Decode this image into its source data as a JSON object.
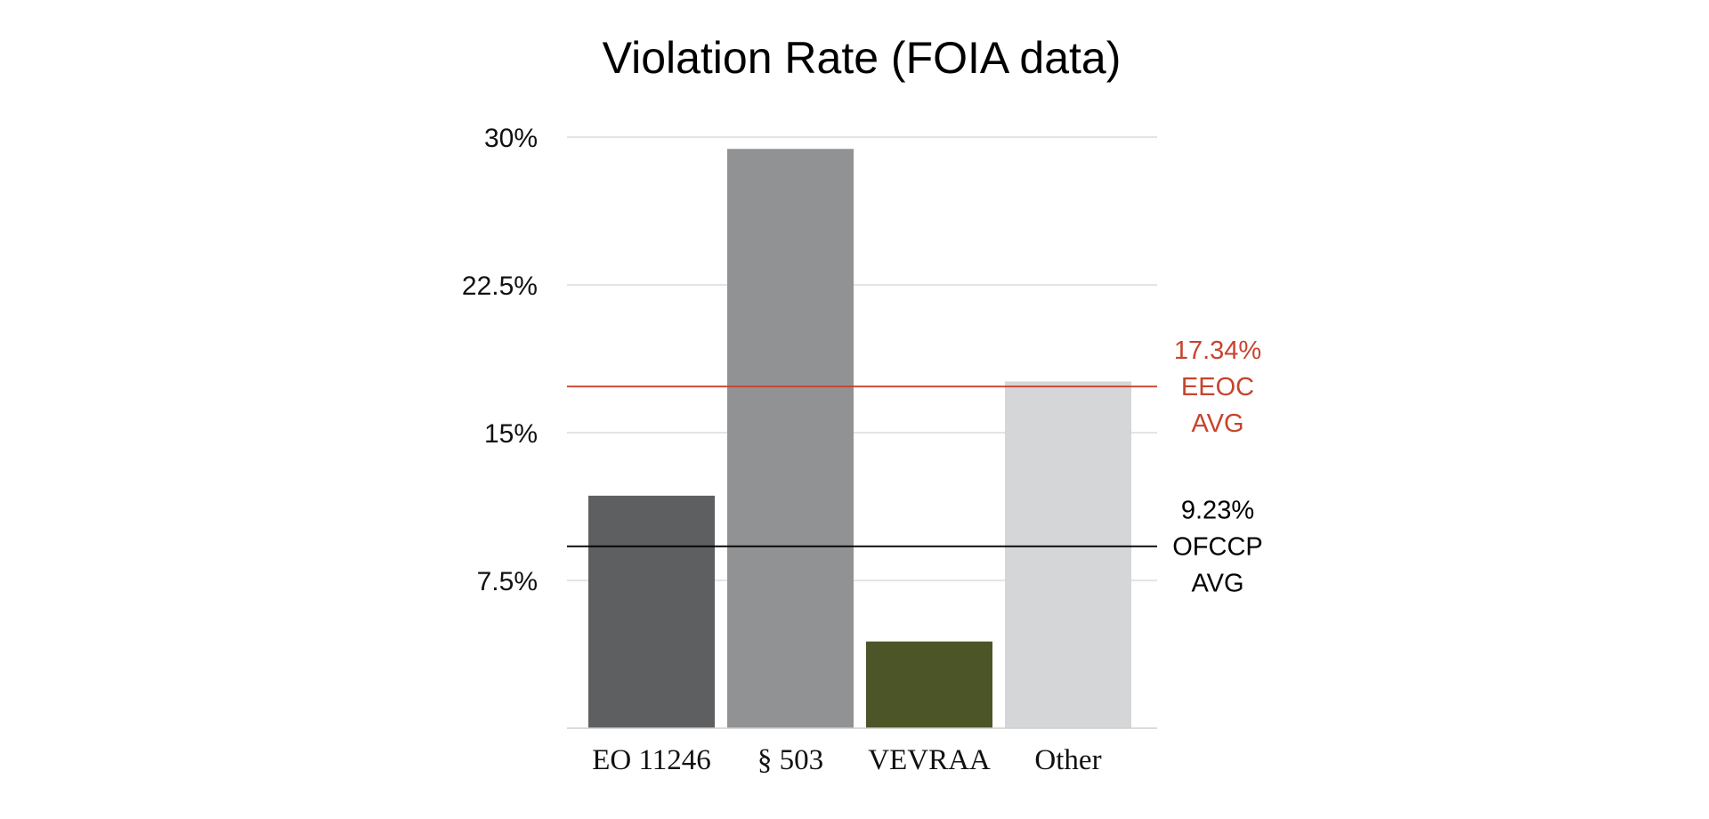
{
  "chart_data": {
    "type": "bar",
    "title": "Violation Rate (FOIA data)",
    "xlabel": "",
    "ylabel": "",
    "ylim": [
      0,
      30
    ],
    "yticks": [
      {
        "value": 7.5,
        "label": "7.5%"
      },
      {
        "value": 15,
        "label": "15%"
      },
      {
        "value": 22.5,
        "label": "22.5%"
      },
      {
        "value": 30,
        "label": "30%"
      }
    ],
    "grid": true,
    "categories": [
      "EO 11246",
      "§ 503",
      "VEVRAA",
      "Other"
    ],
    "values": [
      11.8,
      29.4,
      4.4,
      17.6
    ],
    "colors": [
      "#5e5f61",
      "#919294",
      "#4b5528",
      "#d5d6d8"
    ],
    "reference_lines": [
      {
        "value": 17.34,
        "lines": [
          "17.34%",
          "EEOC",
          "AVG"
        ],
        "color": "#c8432d"
      },
      {
        "value": 9.23,
        "lines": [
          "9.23%",
          "OFCCP",
          "AVG"
        ],
        "color": "#000000"
      }
    ]
  }
}
